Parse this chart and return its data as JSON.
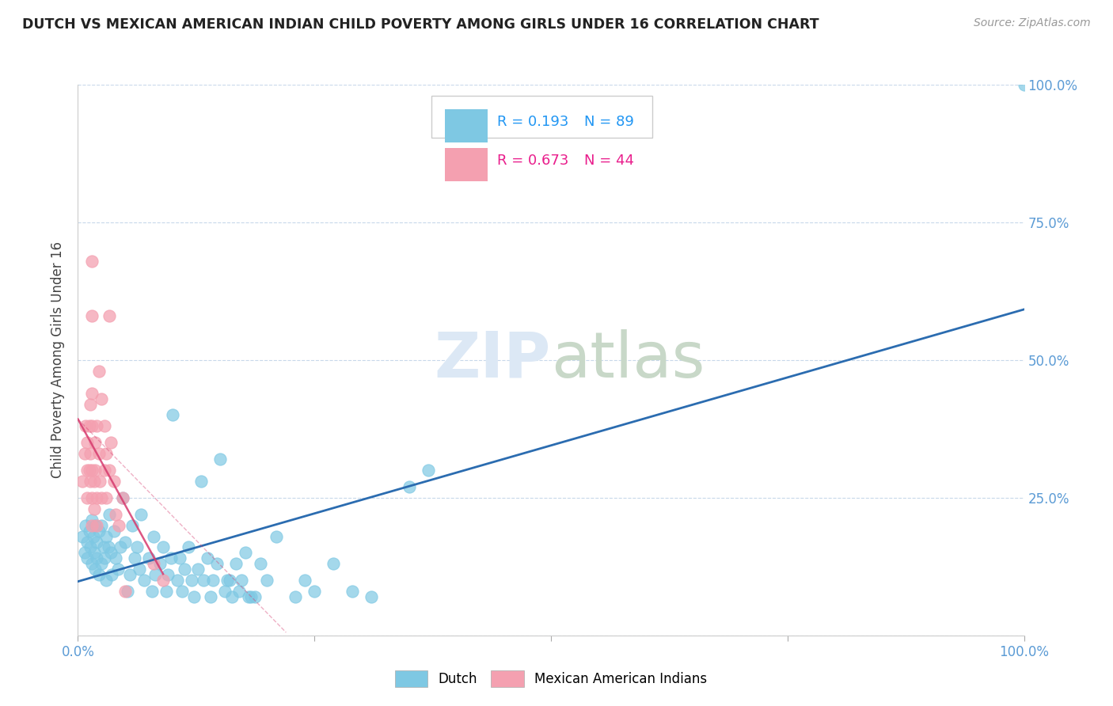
{
  "title": "DUTCH VS MEXICAN AMERICAN INDIAN CHILD POVERTY AMONG GIRLS UNDER 16 CORRELATION CHART",
  "source": "Source: ZipAtlas.com",
  "ylabel": "Child Poverty Among Girls Under 16",
  "xlim": [
    0.0,
    1.0
  ],
  "ylim": [
    0.0,
    1.0
  ],
  "yticks": [
    0.0,
    0.25,
    0.5,
    0.75,
    1.0
  ],
  "xticks": [
    0.0,
    0.25,
    0.5,
    0.75,
    1.0
  ],
  "xtick_labels": [
    "0.0%",
    "",
    "",
    "",
    "100.0%"
  ],
  "ytick_labels_right": [
    "",
    "25.0%",
    "50.0%",
    "75.0%",
    "100.0%"
  ],
  "dutch_R": 0.193,
  "dutch_N": 89,
  "mexican_R": 0.673,
  "mexican_N": 44,
  "dutch_color": "#7ec8e3",
  "mexican_color": "#f4a0b0",
  "dutch_line_color": "#2b6cb0",
  "mexican_line_color": "#d63a6e",
  "title_color": "#222222",
  "axis_color": "#5b9bd5",
  "grid_color": "#c8d8ea",
  "watermark_color": "#dce8f5",
  "legend_r_color_dutch": "#2196f3",
  "legend_r_color_mexican": "#e91e8c",
  "dutch_scatter": [
    [
      0.005,
      0.18
    ],
    [
      0.007,
      0.15
    ],
    [
      0.008,
      0.2
    ],
    [
      0.01,
      0.17
    ],
    [
      0.01,
      0.14
    ],
    [
      0.012,
      0.19
    ],
    [
      0.013,
      0.16
    ],
    [
      0.015,
      0.21
    ],
    [
      0.015,
      0.13
    ],
    [
      0.016,
      0.18
    ],
    [
      0.017,
      0.15
    ],
    [
      0.018,
      0.2
    ],
    [
      0.018,
      0.12
    ],
    [
      0.02,
      0.17
    ],
    [
      0.02,
      0.14
    ],
    [
      0.022,
      0.19
    ],
    [
      0.022,
      0.11
    ],
    [
      0.025,
      0.2
    ],
    [
      0.025,
      0.13
    ],
    [
      0.027,
      0.16
    ],
    [
      0.028,
      0.14
    ],
    [
      0.03,
      0.18
    ],
    [
      0.03,
      0.1
    ],
    [
      0.032,
      0.16
    ],
    [
      0.033,
      0.22
    ],
    [
      0.035,
      0.15
    ],
    [
      0.036,
      0.11
    ],
    [
      0.038,
      0.19
    ],
    [
      0.04,
      0.14
    ],
    [
      0.042,
      0.12
    ],
    [
      0.045,
      0.16
    ],
    [
      0.047,
      0.25
    ],
    [
      0.05,
      0.17
    ],
    [
      0.052,
      0.08
    ],
    [
      0.055,
      0.11
    ],
    [
      0.057,
      0.2
    ],
    [
      0.06,
      0.14
    ],
    [
      0.062,
      0.16
    ],
    [
      0.065,
      0.12
    ],
    [
      0.067,
      0.22
    ],
    [
      0.07,
      0.1
    ],
    [
      0.075,
      0.14
    ],
    [
      0.078,
      0.08
    ],
    [
      0.08,
      0.18
    ],
    [
      0.082,
      0.11
    ],
    [
      0.087,
      0.13
    ],
    [
      0.09,
      0.16
    ],
    [
      0.093,
      0.08
    ],
    [
      0.095,
      0.11
    ],
    [
      0.098,
      0.14
    ],
    [
      0.1,
      0.4
    ],
    [
      0.105,
      0.1
    ],
    [
      0.108,
      0.14
    ],
    [
      0.11,
      0.08
    ],
    [
      0.113,
      0.12
    ],
    [
      0.117,
      0.16
    ],
    [
      0.12,
      0.1
    ],
    [
      0.123,
      0.07
    ],
    [
      0.127,
      0.12
    ],
    [
      0.13,
      0.28
    ],
    [
      0.133,
      0.1
    ],
    [
      0.137,
      0.14
    ],
    [
      0.14,
      0.07
    ],
    [
      0.143,
      0.1
    ],
    [
      0.147,
      0.13
    ],
    [
      0.15,
      0.32
    ],
    [
      0.155,
      0.08
    ],
    [
      0.158,
      0.1
    ],
    [
      0.16,
      0.1
    ],
    [
      0.163,
      0.07
    ],
    [
      0.167,
      0.13
    ],
    [
      0.17,
      0.08
    ],
    [
      0.173,
      0.1
    ],
    [
      0.177,
      0.15
    ],
    [
      0.18,
      0.07
    ],
    [
      0.183,
      0.07
    ],
    [
      0.187,
      0.07
    ],
    [
      0.193,
      0.13
    ],
    [
      0.2,
      0.1
    ],
    [
      0.21,
      0.18
    ],
    [
      0.23,
      0.07
    ],
    [
      0.24,
      0.1
    ],
    [
      0.25,
      0.08
    ],
    [
      0.27,
      0.13
    ],
    [
      0.29,
      0.08
    ],
    [
      0.31,
      0.07
    ],
    [
      0.35,
      0.27
    ],
    [
      0.37,
      0.3
    ],
    [
      1.0,
      1.0
    ]
  ],
  "mexican_scatter": [
    [
      0.005,
      0.28
    ],
    [
      0.007,
      0.33
    ],
    [
      0.008,
      0.38
    ],
    [
      0.01,
      0.3
    ],
    [
      0.01,
      0.25
    ],
    [
      0.01,
      0.35
    ],
    [
      0.012,
      0.38
    ],
    [
      0.012,
      0.3
    ],
    [
      0.013,
      0.42
    ],
    [
      0.013,
      0.28
    ],
    [
      0.013,
      0.33
    ],
    [
      0.015,
      0.44
    ],
    [
      0.015,
      0.38
    ],
    [
      0.015,
      0.3
    ],
    [
      0.015,
      0.25
    ],
    [
      0.015,
      0.2
    ],
    [
      0.015,
      0.58
    ],
    [
      0.015,
      0.68
    ],
    [
      0.017,
      0.23
    ],
    [
      0.017,
      0.28
    ],
    [
      0.018,
      0.3
    ],
    [
      0.018,
      0.35
    ],
    [
      0.02,
      0.38
    ],
    [
      0.02,
      0.25
    ],
    [
      0.02,
      0.2
    ],
    [
      0.022,
      0.48
    ],
    [
      0.022,
      0.33
    ],
    [
      0.023,
      0.28
    ],
    [
      0.025,
      0.43
    ],
    [
      0.025,
      0.25
    ],
    [
      0.028,
      0.38
    ],
    [
      0.028,
      0.3
    ],
    [
      0.03,
      0.33
    ],
    [
      0.03,
      0.25
    ],
    [
      0.033,
      0.58
    ],
    [
      0.033,
      0.3
    ],
    [
      0.035,
      0.35
    ],
    [
      0.038,
      0.28
    ],
    [
      0.04,
      0.22
    ],
    [
      0.043,
      0.2
    ],
    [
      0.047,
      0.25
    ],
    [
      0.05,
      0.08
    ],
    [
      0.08,
      0.13
    ],
    [
      0.09,
      0.1
    ]
  ]
}
